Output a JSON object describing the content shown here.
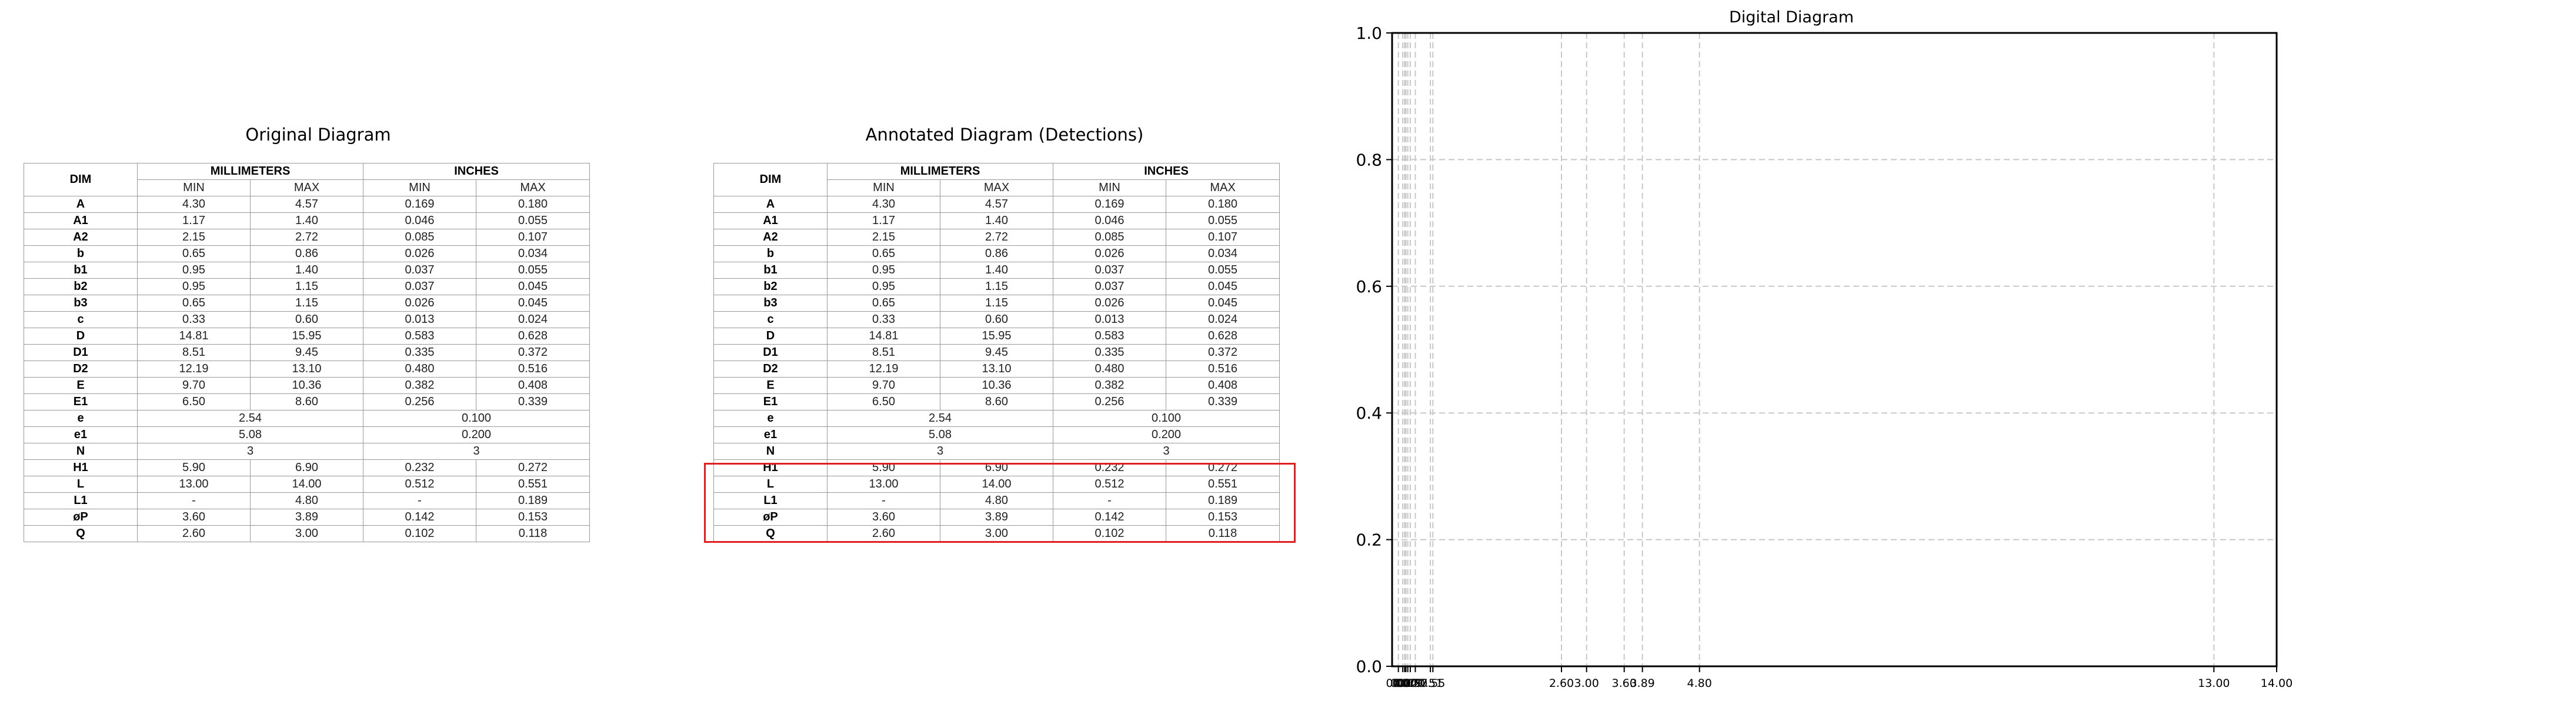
{
  "panels": {
    "original_title": "Original Diagram",
    "annotated_title": "Annotated Diagram (Detections)"
  },
  "table": {
    "group_headers": {
      "dim": "DIM",
      "mm": "MILLIMETERS",
      "in": "INCHES"
    },
    "sub_headers": [
      "MIN",
      "MAX",
      "MIN",
      "MAX"
    ],
    "rows": [
      {
        "dim": "A",
        "v": [
          "4.30",
          "4.57",
          "0.169",
          "0.180"
        ]
      },
      {
        "dim": "A1",
        "v": [
          "1.17",
          "1.40",
          "0.046",
          "0.055"
        ]
      },
      {
        "dim": "A2",
        "v": [
          "2.15",
          "2.72",
          "0.085",
          "0.107"
        ]
      },
      {
        "dim": "b",
        "v": [
          "0.65",
          "0.86",
          "0.026",
          "0.034"
        ]
      },
      {
        "dim": "b1",
        "v": [
          "0.95",
          "1.40",
          "0.037",
          "0.055"
        ]
      },
      {
        "dim": "b2",
        "v": [
          "0.95",
          "1.15",
          "0.037",
          "0.045"
        ]
      },
      {
        "dim": "b3",
        "v": [
          "0.65",
          "1.15",
          "0.026",
          "0.045"
        ]
      },
      {
        "dim": "c",
        "v": [
          "0.33",
          "0.60",
          "0.013",
          "0.024"
        ]
      },
      {
        "dim": "D",
        "v": [
          "14.81",
          "15.95",
          "0.583",
          "0.628"
        ]
      },
      {
        "dim": "D1",
        "v": [
          "8.51",
          "9.45",
          "0.335",
          "0.372"
        ]
      },
      {
        "dim": "D2",
        "v": [
          "12.19",
          "13.10",
          "0.480",
          "0.516"
        ]
      },
      {
        "dim": "E",
        "v": [
          "9.70",
          "10.36",
          "0.382",
          "0.408"
        ]
      },
      {
        "dim": "E1",
        "v": [
          "6.50",
          "8.60",
          "0.256",
          "0.339"
        ]
      },
      {
        "dim": "e",
        "mm": "2.54",
        "in": "0.100"
      },
      {
        "dim": "e1",
        "mm": "5.08",
        "in": "0.200"
      },
      {
        "dim": "N",
        "mm": "3",
        "in": "3"
      },
      {
        "dim": "H1",
        "v": [
          "5.90",
          "6.90",
          "0.232",
          "0.272"
        ]
      },
      {
        "dim": "L",
        "v": [
          "13.00",
          "14.00",
          "0.512",
          "0.551"
        ]
      },
      {
        "dim": "L1",
        "v": [
          "-",
          "4.80",
          "-",
          "0.189"
        ]
      },
      {
        "dim": "øP",
        "v": [
          "3.60",
          "3.89",
          "0.142",
          "0.153"
        ]
      },
      {
        "dim": "Q",
        "v": [
          "2.60",
          "3.00",
          "0.102",
          "0.118"
        ]
      }
    ]
  },
  "detection": {
    "first_row_index": 16,
    "last_row_index": 20,
    "color": "#e02020"
  },
  "chart_data": {
    "type": "scatter",
    "title": "Digital Diagram",
    "xlabel": "",
    "ylabel": "",
    "xlim": [
      -0.1,
      14.0
    ],
    "ylim": [
      0.0,
      1.0
    ],
    "grid": true,
    "grid_style": "dashed",
    "x_tick_labels": [
      "0.00",
      "0.07",
      "0.10",
      "0.12",
      "0.15",
      "0.19",
      "0.27",
      "0.51",
      "0.55",
      "2.60",
      "3.00",
      "3.60",
      "3.89",
      "4.80",
      "13.00",
      "14.00"
    ],
    "x_tick_values": [
      0.0,
      0.07,
      0.1,
      0.12,
      0.15,
      0.19,
      0.27,
      0.51,
      0.55,
      2.6,
      3.0,
      3.6,
      3.89,
      4.8,
      13.0,
      14.0
    ],
    "y_tick_labels": [
      "0.0",
      "0.2",
      "0.4",
      "0.6",
      "0.8",
      "1.0"
    ],
    "y_tick_values": [
      0.0,
      0.2,
      0.4,
      0.6,
      0.8,
      1.0
    ],
    "series": []
  }
}
